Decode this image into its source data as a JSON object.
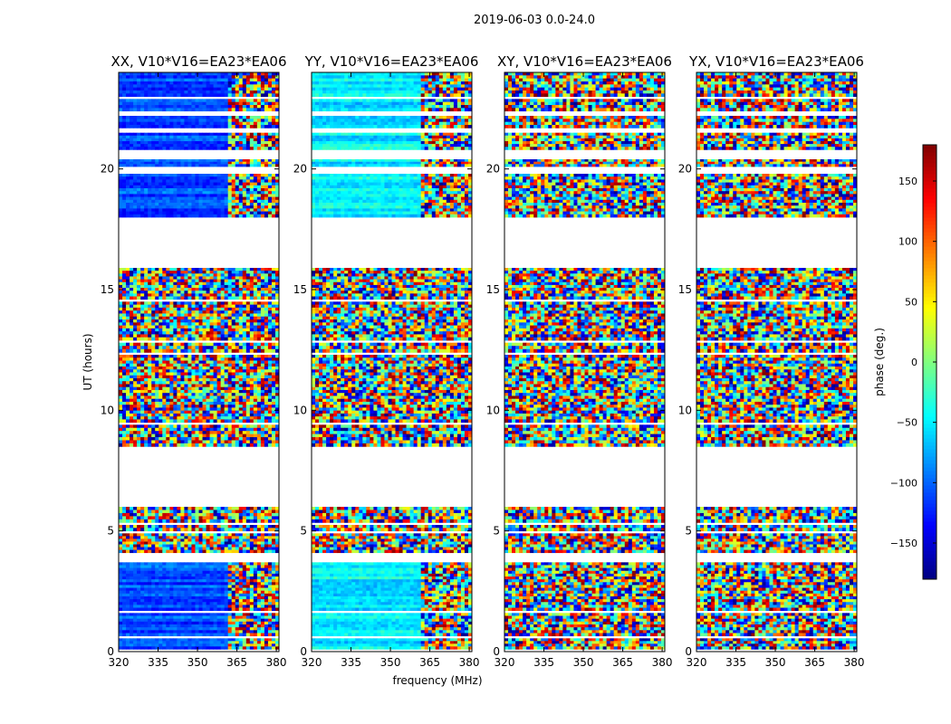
{
  "figure_title": "2019-06-03 0.0-24.0",
  "xlabel": "frequency (MHz)",
  "ylabel": "UT (hours)",
  "chart_data": {
    "type": "heatmap",
    "suptitle": "2019-06-03 0.0-24.0",
    "xlabel": "frequency (MHz)",
    "ylabel": "UT (hours)",
    "xlim": [
      320,
      381
    ],
    "ylim": [
      0,
      24
    ],
    "xticks": [
      320,
      335,
      350,
      365,
      380
    ],
    "yticks": [
      0,
      5,
      10,
      15,
      20
    ],
    "panels": [
      {
        "title": "XX, V10*V16=EA23*EA06",
        "coherent": true,
        "coherent_base_phase": -110
      },
      {
        "title": "YY, V10*V16=EA23*EA06",
        "coherent": true,
        "coherent_base_phase": -50
      },
      {
        "title": "XY, V10*V16=EA23*EA06",
        "coherent": false
      },
      {
        "title": "YX, V10*V16=EA23*EA06",
        "coherent": false
      }
    ],
    "data_blocks_ut": [
      [
        0.1,
        0.55
      ],
      [
        0.65,
        1.6
      ],
      [
        1.7,
        3.7
      ],
      [
        4.1,
        4.9
      ],
      [
        5.0,
        5.25
      ],
      [
        5.35,
        6.0
      ],
      [
        8.5,
        9.4
      ],
      [
        9.5,
        12.3
      ],
      [
        12.4,
        12.8
      ],
      [
        12.9,
        14.5
      ],
      [
        14.6,
        15.9
      ],
      [
        18.0,
        19.8
      ],
      [
        20.1,
        20.4
      ],
      [
        20.8,
        21.5
      ],
      [
        21.7,
        22.2
      ],
      [
        22.4,
        22.9
      ],
      [
        23.0,
        24.0
      ]
    ],
    "colorbar": {
      "label": "phase (deg.)",
      "vmin": -180,
      "vmax": 180,
      "ticks": [
        -150,
        -100,
        -50,
        0,
        50,
        100,
        150
      ],
      "colormap": "jet"
    }
  }
}
